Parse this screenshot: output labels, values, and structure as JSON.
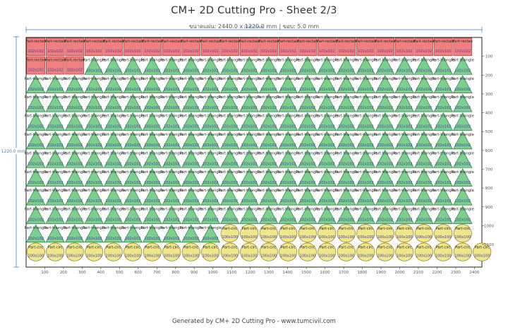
{
  "header": {
    "title": "CM+ 2D Cutting Pro - Sheet 2/3",
    "sheet_label": "ขนาดแผ่น:",
    "sheet_size": "2440.0 x 1220.0 mm",
    "separator": "|",
    "kerf_label": "ขอบ:",
    "kerf_value": "5.0 mm",
    "subtitle": "ขนาดแผ่น: 2440.0 x 1220.0 mm | ขอบ: 5.0 mm"
  },
  "dimensions": {
    "width_label": "2440.0 mm",
    "height_label": "1220.0 mm"
  },
  "footer": {
    "text": "Generated by CM+ 2D Cutting Pro - www.tumcivil.com"
  },
  "colors": {
    "rectangle_fill": "#f08080",
    "rectangle_stroke": "#b03a3a",
    "triangle_fill": "#7ccf8c",
    "triangle_stroke": "#2e7d45",
    "circle_fill": "#f0e68c",
    "circle_stroke": "#8a7a2a",
    "dimension_line": "#4a7fc1",
    "label_text": "#4040a0",
    "name_text": "#222222"
  },
  "sheet": {
    "width_mm": 2440,
    "height_mm": 1220,
    "x_ticks": [
      100,
      200,
      300,
      400,
      500,
      600,
      700,
      800,
      900,
      1000,
      1100,
      1200,
      1300,
      1400,
      1500,
      1600,
      1700,
      1800,
      1900,
      2000,
      2100,
      2200,
      2300,
      2400
    ],
    "y_ticks": [
      100,
      200,
      300,
      400,
      500,
      600,
      700,
      800,
      900,
      1000,
      1100
    ]
  },
  "parts": {
    "rectangle_name": "Part-rectan",
    "triangle_name": "Part-triangle",
    "circle_name": "Part-circ",
    "rectangle_size": "102x102",
    "circle_size": "100x100",
    "triangle_size": "102x102",
    "rows": [
      {
        "type": "rectangle",
        "count": 23
      },
      {
        "type": "rectangle",
        "count": 3,
        "then": "triangle",
        "then_count": 20
      },
      {
        "type": "triangle",
        "count": 23
      },
      {
        "type": "triangle",
        "count": 23
      },
      {
        "type": "triangle",
        "count": 23
      },
      {
        "type": "triangle",
        "count": 23
      },
      {
        "type": "triangle",
        "count": 23
      },
      {
        "type": "triangle",
        "count": 23
      },
      {
        "type": "triangle",
        "count": 23
      },
      {
        "type": "triangle",
        "count": 23
      },
      {
        "type": "triangle",
        "count": 10,
        "then": "circle",
        "then_count": 15
      },
      {
        "type": "circle",
        "count": 24
      }
    ]
  }
}
